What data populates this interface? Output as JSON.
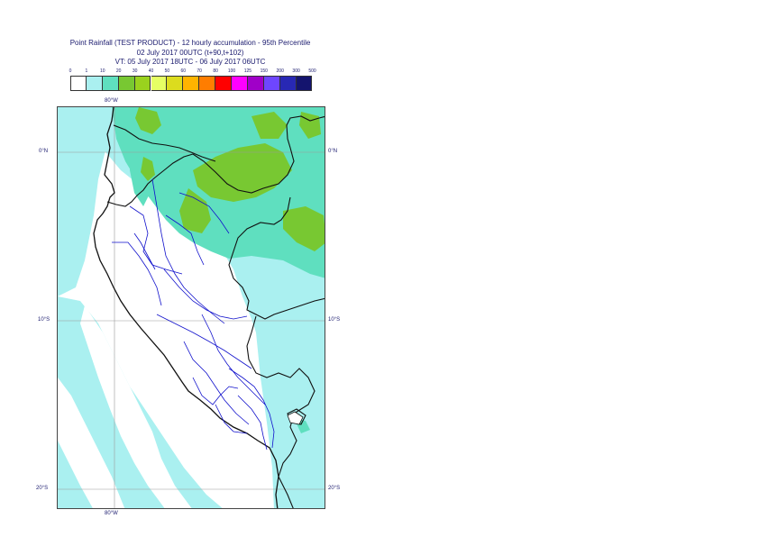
{
  "title": {
    "line1": "Point Rainfall (TEST PRODUCT) - 12 hourly accumulation - 95th Percentile",
    "line2": "02 July 2017 00UTC (t+90,t+102)",
    "line3": "VT: 05 July 2017 18UTC - 06 July 2017 06UTC"
  },
  "legend": {
    "ticks": [
      "0",
      "1",
      "10",
      "20",
      "30",
      "40",
      "50",
      "60",
      "70",
      "80",
      "100",
      "125",
      "150",
      "200",
      "300",
      "500"
    ],
    "colors": [
      "#ffffff",
      "#aaf0f0",
      "#5fdfbf",
      "#78c832",
      "#9ad21e",
      "#e6ff64",
      "#dcdc1e",
      "#ffb400",
      "#ff7d00",
      "#ff0000",
      "#ff00ff",
      "#a000c8",
      "#6e46ff",
      "#2828b4",
      "#14146e"
    ]
  },
  "axes": {
    "lon_top": "80°W",
    "lon_bottom": "80°W",
    "lat_0_left": "0°N",
    "lat_0_right": "0°N",
    "lat_10_left": "10°S",
    "lat_10_right": "10°S",
    "lat_20_left": "20°S",
    "lat_20_right": "20°S"
  }
}
